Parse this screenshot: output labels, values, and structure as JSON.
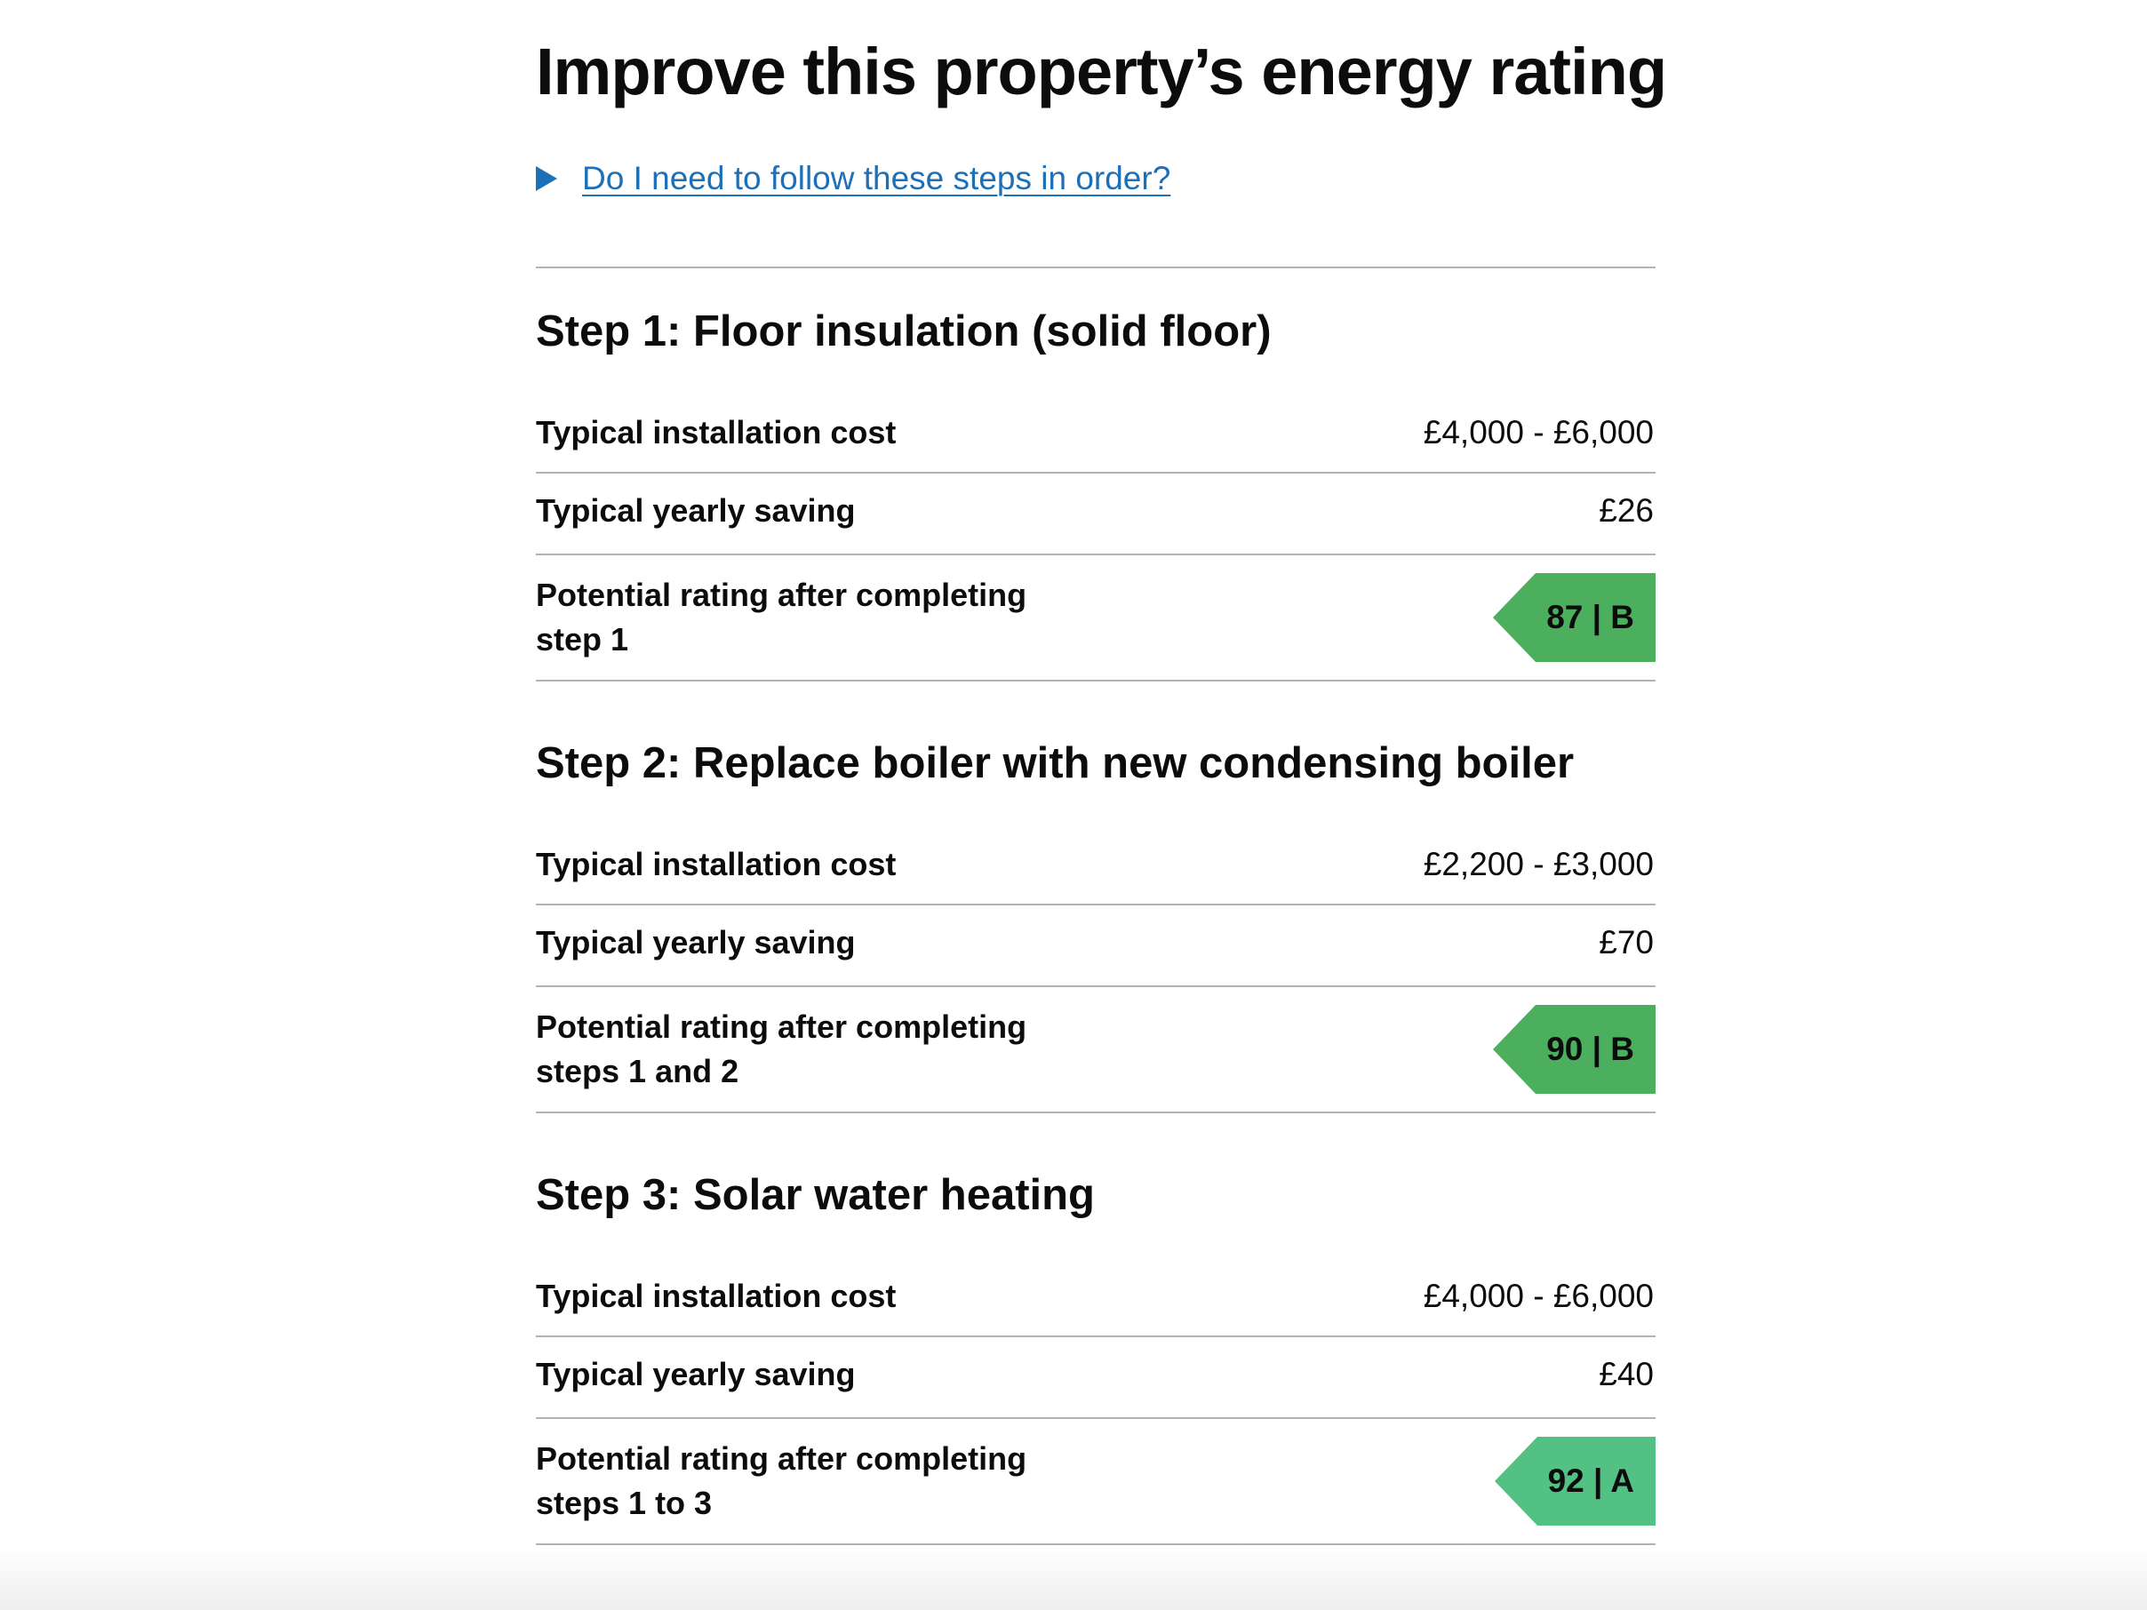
{
  "page": {
    "title": "Improve this property’s energy rating",
    "details_link": "Do I need to follow these steps in order?"
  },
  "steps": [
    {
      "heading": "Step 1: Floor insulation (solid floor)",
      "cost_label": "Typical installation cost",
      "cost_value": "£4,000 - £6,000",
      "saving_label": "Typical yearly saving",
      "saving_value": "£26",
      "rating_label": "Potential rating after completing step 1",
      "rating_value": "87 | B",
      "rating_color": "#4caf5e"
    },
    {
      "heading": "Step 2: Replace boiler with new condensing boiler",
      "cost_label": "Typical installation cost",
      "cost_value": "£2,200 - £3,000",
      "saving_label": "Typical yearly saving",
      "saving_value": "£70",
      "rating_label": "Potential rating after completing steps 1 and 2",
      "rating_value": "90 | B",
      "rating_color": "#4caf5e"
    },
    {
      "heading": "Step 3: Solar water heating",
      "cost_label": "Typical installation cost",
      "cost_value": "£4,000 - £6,000",
      "saving_label": "Typical yearly saving",
      "saving_value": "£40",
      "rating_label": "Potential rating after completing steps 1 to 3",
      "rating_value": "92 | A",
      "rating_color": "#54c184"
    }
  ],
  "icons": {
    "details_toggle": "triangle-right-icon",
    "rating_tip": "arrow-left-shape"
  }
}
